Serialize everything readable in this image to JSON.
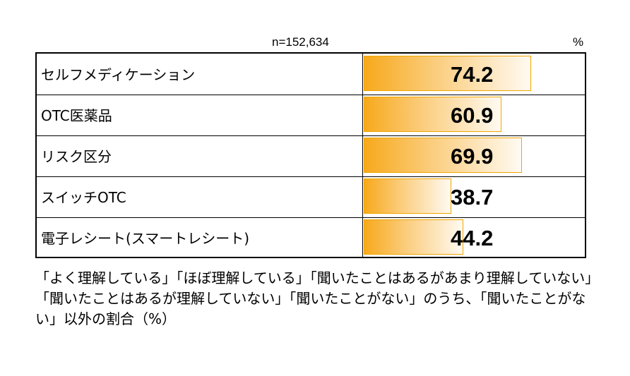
{
  "header": {
    "n_label": "n=152,634",
    "unit_label": "%"
  },
  "note": "「よく理解している」「ほぼ理解している」「聞いたことはあるがあまり理解していない」「聞いたことはあるが理解していない」「聞いたことがない」のうち、「聞いたことがない」以外の割合（%）",
  "colors": {
    "bar_start": "#f7a91c",
    "bar_end": "#fffaf2",
    "bar_border": "#f0a500"
  },
  "chart_data": {
    "type": "bar",
    "orientation": "horizontal",
    "categories": [
      "セルフメディケーション",
      "OTC医薬品",
      "リスク区分",
      "スイッチOTC",
      "電子レシート(スマートレシート)"
    ],
    "values": [
      74.2,
      60.9,
      69.9,
      38.7,
      44.2
    ],
    "value_labels": [
      "74.2",
      "60.9",
      "69.9",
      "38.7",
      "44.2"
    ],
    "xlim": [
      0,
      100
    ],
    "grid": false
  }
}
